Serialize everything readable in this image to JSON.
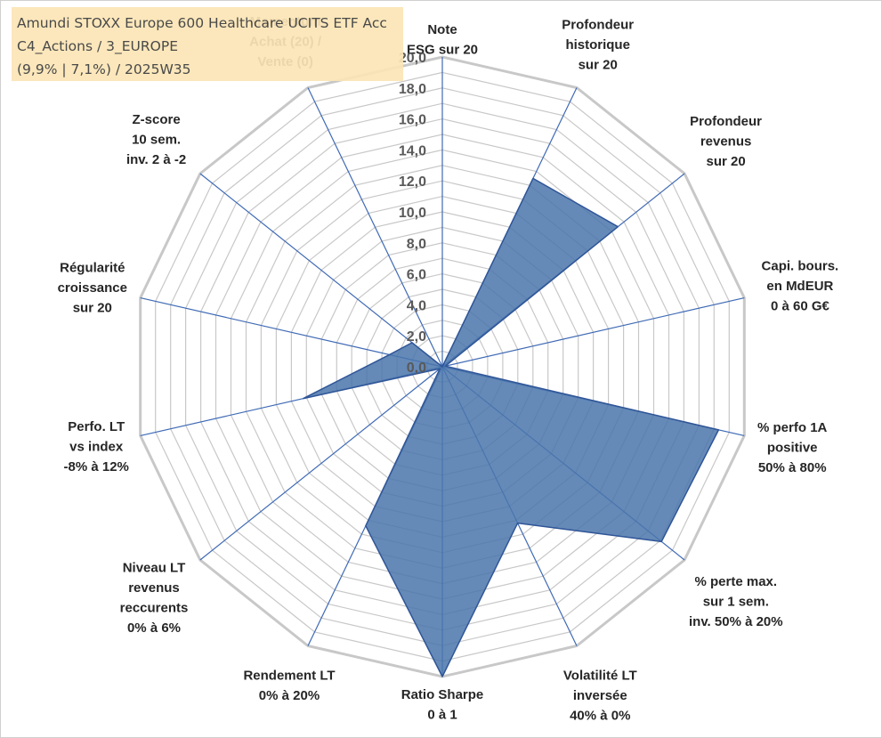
{
  "info": {
    "line1": "Amundi STOXX Europe 600 Healthcare UCITS ETF Acc",
    "line2": "C4_Actions / 3_EUROPE",
    "line3": "(9,9% | 7,1%) / 2025W35"
  },
  "chart_data": {
    "type": "radar",
    "rmin": 0,
    "rmax": 20,
    "grid_step": 1,
    "grid": true,
    "legend": "none",
    "fill_color": "#4a76ac",
    "grid_color": "#c8c8c8",
    "axis_color": "#3f6ab5",
    "tick_labels": [
      "0,0",
      "2,0",
      "4,0",
      "6,0",
      "8,0",
      "10,0",
      "12,0",
      "14,0",
      "16,0",
      "18,0",
      "20,0"
    ],
    "axes": [
      {
        "lines": [
          "Note",
          "ESG sur 20"
        ]
      },
      {
        "lines": [
          "Profondeur",
          "historique",
          "sur 20"
        ]
      },
      {
        "lines": [
          "Profondeur",
          "revenus",
          "sur 20"
        ]
      },
      {
        "lines": [
          "Capi. bours.",
          "en MdEUR",
          "0 à 60 G€"
        ]
      },
      {
        "lines": [
          "% perfo 1A",
          "positive",
          "50% à 80%"
        ]
      },
      {
        "lines": [
          "% perte max.",
          "sur 1 sem.",
          "inv. 50% à 20%"
        ]
      },
      {
        "lines": [
          "Volatilité LT",
          "inversée",
          "40% à 0%"
        ]
      },
      {
        "lines": [
          "Ratio Sharpe",
          "0 à 1"
        ]
      },
      {
        "lines": [
          "Rendement LT",
          "0% à 20%"
        ]
      },
      {
        "lines": [
          "Niveau LT",
          "revenus",
          "reccurents",
          "0% à 6%"
        ]
      },
      {
        "lines": [
          "Perfo. LT",
          "vs index",
          "-8% à 12%"
        ]
      },
      {
        "lines": [
          "Régularité",
          "croissance",
          "sur 20"
        ]
      },
      {
        "lines": [
          "Z-score",
          "10 sem.",
          "inv. 2 à -2"
        ]
      },
      {
        "lines": [
          "Momentum",
          "Achat (20) /",
          "Vente (0)"
        ]
      }
    ],
    "values": [
      0,
      13.5,
      14.5,
      0.2,
      18.3,
      18.1,
      11.2,
      20,
      11.4,
      0.2,
      9.2,
      3.5,
      2.5,
      0
    ]
  }
}
